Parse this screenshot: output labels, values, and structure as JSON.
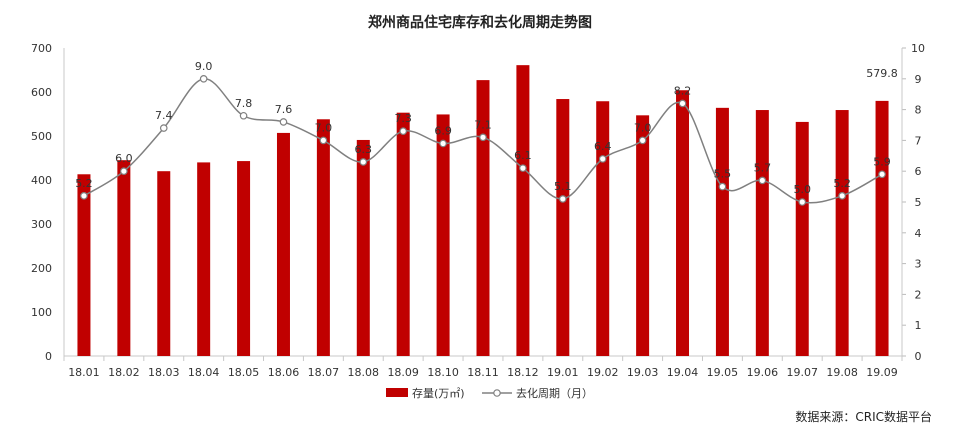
{
  "chart_data": {
    "type": "bar+line",
    "title": "郑州商品住宅库存和去化周期走势图",
    "categories": [
      "18.01",
      "18.02",
      "18.03",
      "18.04",
      "18.05",
      "18.06",
      "18.07",
      "18.08",
      "18.09",
      "18.10",
      "18.11",
      "18.12",
      "19.01",
      "19.02",
      "19.03",
      "19.04",
      "19.05",
      "19.06",
      "19.07",
      "19.08",
      "19.09"
    ],
    "series": [
      {
        "name": "存量(万㎡)",
        "type": "bar",
        "axis": "left",
        "color": "#c00000",
        "values": [
          413,
          445,
          420,
          440,
          443,
          507,
          538,
          491,
          553,
          549,
          627,
          661,
          584,
          579,
          547,
          604,
          564,
          559,
          532,
          559,
          579.8
        ]
      },
      {
        "name": "去化周期（月）",
        "type": "line",
        "axis": "right",
        "color": "#808080",
        "values": [
          5.2,
          6.0,
          7.4,
          9.0,
          7.8,
          7.6,
          7.0,
          6.3,
          7.3,
          6.9,
          7.1,
          6.1,
          5.1,
          6.4,
          7.0,
          8.2,
          5.5,
          5.7,
          5.0,
          5.2,
          5.9
        ],
        "labels": [
          "5.2",
          "6.0",
          "7.4",
          "9.0",
          "7.8",
          "7.6",
          "7.0",
          "6.3",
          "7.3",
          "6.9",
          "7.1",
          "6.1",
          "5.1",
          "6.4",
          "7.0",
          "8.2",
          "5.5",
          "5.7",
          "5.0",
          "5.2",
          "5.9"
        ]
      }
    ],
    "bar_labels": {
      "20": "579.8"
    },
    "y_left": {
      "min": 0,
      "max": 700,
      "ticks": [
        0,
        100,
        200,
        300,
        400,
        500,
        600,
        700
      ]
    },
    "y_right": {
      "min": 0,
      "max": 10,
      "ticks": [
        0,
        1,
        2,
        3,
        4,
        5,
        6,
        7,
        8,
        9,
        10
      ]
    },
    "legend_position": "bottom-center",
    "grid": false
  },
  "source": "数据来源：CRIC数据平台"
}
